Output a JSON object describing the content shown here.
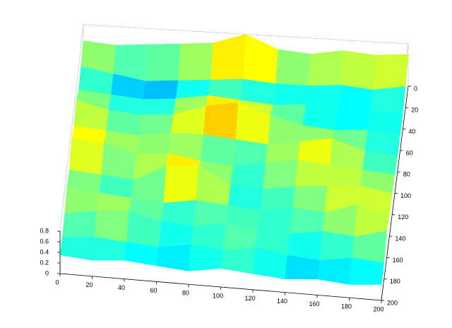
{
  "chart_data": {
    "type": "surface",
    "colormap": "jet",
    "clim": [
      0,
      0.8
    ],
    "x": [
      0,
      20,
      40,
      60,
      80,
      100,
      120,
      140,
      160,
      180,
      200
    ],
    "y": [
      0,
      20,
      40,
      60,
      80,
      100,
      120,
      140,
      160,
      180,
      200
    ],
    "z": [
      [
        0.5,
        0.45,
        0.5,
        0.55,
        0.6,
        0.8,
        0.55,
        0.5,
        0.6,
        0.55,
        0.6
      ],
      [
        0.4,
        0.3,
        0.2,
        0.25,
        0.3,
        0.35,
        0.3,
        0.3,
        0.35,
        0.3,
        0.4
      ],
      [
        0.35,
        0.3,
        0.25,
        0.3,
        0.4,
        0.35,
        0.3,
        0.35,
        0.25,
        0.3,
        0.3
      ],
      [
        0.55,
        0.4,
        0.35,
        0.4,
        0.6,
        0.7,
        0.5,
        0.35,
        0.3,
        0.35,
        0.3
      ],
      [
        0.45,
        0.4,
        0.35,
        0.45,
        0.45,
        0.4,
        0.35,
        0.45,
        0.55,
        0.35,
        0.3
      ],
      [
        0.6,
        0.55,
        0.4,
        0.45,
        0.35,
        0.3,
        0.4,
        0.5,
        0.45,
        0.4,
        0.35
      ],
      [
        0.4,
        0.35,
        0.3,
        0.6,
        0.65,
        0.35,
        0.3,
        0.4,
        0.45,
        0.5,
        0.4
      ],
      [
        0.45,
        0.4,
        0.35,
        0.3,
        0.4,
        0.35,
        0.3,
        0.4,
        0.35,
        0.55,
        0.4
      ],
      [
        0.35,
        0.45,
        0.5,
        0.35,
        0.3,
        0.4,
        0.35,
        0.3,
        0.4,
        0.35,
        0.5
      ],
      [
        0.3,
        0.35,
        0.3,
        0.25,
        0.35,
        0.3,
        0.4,
        0.3,
        0.25,
        0.35,
        0.3
      ],
      [
        0.35,
        0.3,
        0.35,
        0.3,
        0.25,
        0.35,
        0.3,
        0.25,
        0.3,
        0.25,
        0.3
      ]
    ],
    "xlim": [
      0,
      200
    ],
    "xticks": [
      0,
      20,
      40,
      60,
      80,
      100,
      120,
      140,
      160,
      180,
      200
    ],
    "ylim": [
      0,
      200
    ],
    "yticks": [
      0,
      20,
      40,
      60,
      80,
      100,
      120,
      140,
      160,
      180,
      200
    ],
    "zlim": [
      0,
      0.8
    ],
    "zticks": [
      0,
      0.2,
      0.4,
      0.6,
      0.8
    ]
  }
}
